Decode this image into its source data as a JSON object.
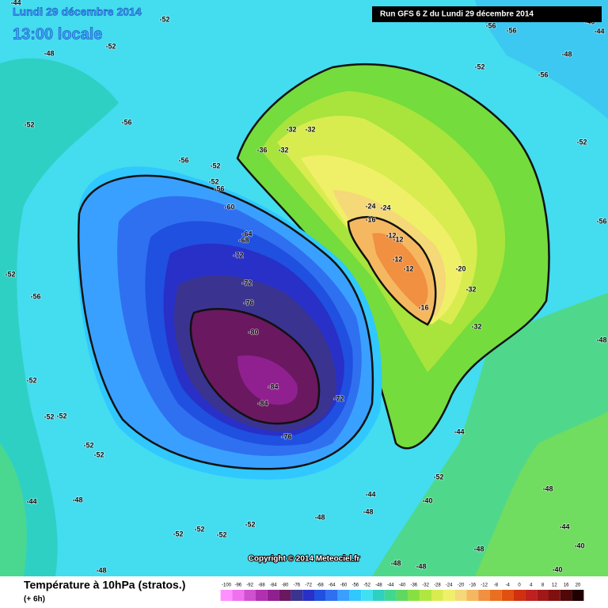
{
  "header": {
    "date": "Lundi 29 décembre 2014",
    "time": "13:00 locale",
    "run": "Run GFS 6 Z du Lundi 29 décembre 2014"
  },
  "copyright": "Copyright © 2014 Meteociel.fr",
  "footer": {
    "title": "Température à 10hPa (stratos.)",
    "lead": "(+ 6h)"
  },
  "legend": {
    "values": [
      -100,
      -96,
      -92,
      -88,
      -84,
      -80,
      -76,
      -72,
      -68,
      -64,
      -60,
      -56,
      -52,
      -48,
      -44,
      -40,
      -36,
      -32,
      -28,
      -24,
      -20,
      -16,
      -12,
      -8,
      -4,
      0,
      4,
      8,
      12,
      16,
      20
    ],
    "colors": [
      "#ff90ff",
      "#f070f0",
      "#d050d0",
      "#b030b0",
      "#902090",
      "#6a1860",
      "#3a3490",
      "#2830c8",
      "#2050e0",
      "#2f70f0",
      "#3aa0ff",
      "#30c8ff",
      "#40e0f0",
      "#30d0c0",
      "#40d890",
      "#60d860",
      "#88e040",
      "#b0e640",
      "#d8ec50",
      "#f0f068",
      "#f5d878",
      "#f5b860",
      "#f09040",
      "#e87020",
      "#e05010",
      "#d03010",
      "#c02020",
      "#a01818",
      "#801010",
      "#500808",
      "#200000"
    ]
  },
  "contour_labels": [
    -44,
    -52,
    -52,
    -48,
    -56,
    -52,
    -56,
    -52,
    -52,
    -56,
    -60,
    -64,
    -68,
    -72,
    -72,
    -76,
    -80,
    -84,
    -84,
    -76,
    -72,
    -52,
    -56,
    -52,
    -52,
    -52,
    -52,
    -52,
    -44,
    -48,
    -52,
    -52,
    -52,
    -52,
    -48,
    -48,
    -48,
    -48,
    -48,
    -48,
    -44,
    -40,
    -40,
    -48,
    -44,
    -40,
    -44,
    -52,
    -32,
    -32,
    -36,
    -32,
    -24,
    -24,
    -16,
    -12,
    -12,
    -12,
    -12,
    -16,
    -20,
    -32,
    -32,
    -52,
    -56,
    -48,
    -56,
    -56,
    -52,
    -48,
    -56,
    -44,
    -40
  ]
}
